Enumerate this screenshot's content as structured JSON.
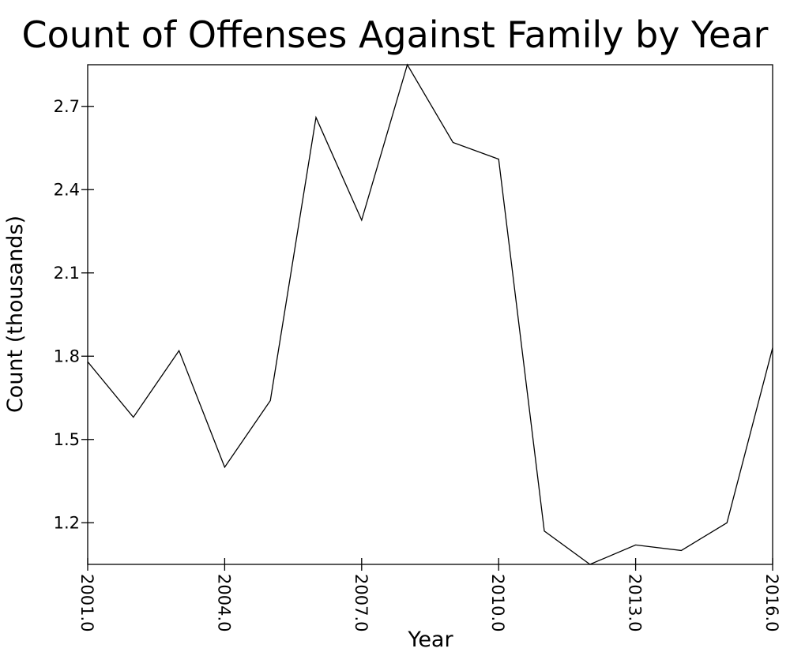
{
  "chart_data": {
    "type": "line",
    "title": "Count of Offenses Against Family by Year",
    "xlabel": "Year",
    "ylabel": "Count (thousands)",
    "xlim": [
      2001,
      2016
    ],
    "ylim": [
      1.05,
      2.85
    ],
    "x_ticks": [
      2001,
      2004,
      2007,
      2010,
      2013,
      2016
    ],
    "x_tick_labels": [
      "2001.0",
      "2004.0",
      "2007.0",
      "2010.0",
      "2013.0",
      "2016.0"
    ],
    "y_ticks": [
      1.2,
      1.5,
      1.8,
      2.1,
      2.4,
      2.7
    ],
    "y_tick_labels": [
      "1.2",
      "1.5",
      "1.8",
      "2.1",
      "2.4",
      "2.7"
    ],
    "grid": false,
    "series": [
      {
        "x": [
          2001,
          2002,
          2003,
          2004,
          2005,
          2006,
          2007,
          2008,
          2009,
          2010,
          2011,
          2012,
          2013,
          2014,
          2015,
          2016
        ],
        "values": [
          1.78,
          1.58,
          1.82,
          1.4,
          1.64,
          2.66,
          2.29,
          2.85,
          2.57,
          2.51,
          1.17,
          1.05,
          1.12,
          1.1,
          1.2,
          1.83
        ]
      }
    ]
  }
}
